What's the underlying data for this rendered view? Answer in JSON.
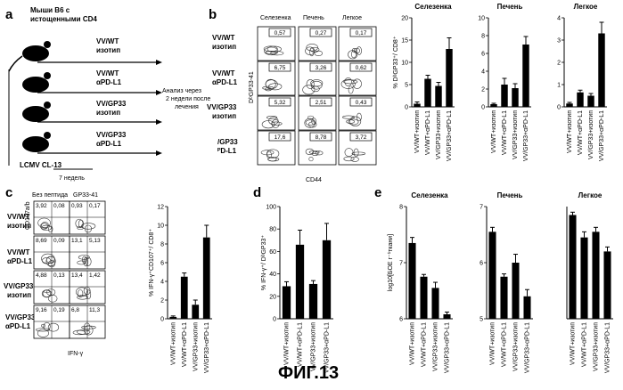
{
  "figure": {
    "caption": "ФИГ.13",
    "panel_letters": [
      "a",
      "b",
      "c",
      "d",
      "e"
    ]
  },
  "panel_a": {
    "mouse_label": [
      "Мыши B6 с",
      "истощенными CD4"
    ],
    "groups": [
      [
        "VV/WT",
        "изотип"
      ],
      [
        "VV/WT",
        "αPD-L1"
      ],
      [
        "VV/GP33",
        "изотип"
      ],
      [
        "VV/GP33",
        "αPD-L1"
      ]
    ],
    "analysis_note": [
      "Анализ через",
      "2 недели после",
      "лечения"
    ],
    "infection_label": "LCMV CL-13",
    "time_label": "7 недель"
  },
  "panel_b_flow": {
    "columns": [
      "Селезенка",
      "Печень",
      "Легкое"
    ],
    "row_labels": [
      [
        "VV/WT",
        "изотип"
      ],
      [
        "VV/WT",
        "αPD-L1"
      ],
      [
        "VV/GP33",
        "изотип"
      ],
      [
        "/GP33",
        "ᴾD-L1"
      ]
    ],
    "values": [
      [
        "0,57",
        "0,27",
        "0,17"
      ],
      [
        "6,75",
        "3,26",
        "0,62"
      ],
      [
        "5,32",
        "2,51",
        "0,43"
      ],
      [
        "17,6",
        "8,78",
        "3,72"
      ]
    ],
    "y_axis": "DᵇGP33-41",
    "x_axis": "CD44"
  },
  "panel_c_flow": {
    "col_headers": [
      "Без пептида",
      "GP33-41"
    ],
    "row_labels": [
      [
        "VV/WT",
        "изотип"
      ],
      [
        "VV/WT",
        "αPD-L1"
      ],
      [
        "VV/GP33",
        "изотип"
      ],
      [
        "VV/GP33",
        "αPD-L1"
      ]
    ],
    "quadrants": [
      [
        "3,92",
        "0,08",
        "0,93",
        "0,17"
      ],
      [
        "8,69",
        "0,09",
        "13,1",
        "5,13"
      ],
      [
        "4,88",
        "0,13",
        "13,4",
        "1,42"
      ],
      [
        "9,16",
        "0,19",
        "6,8",
        "11,3"
      ]
    ],
    "y_axis": "CD107a/b",
    "x_axis": "IFN-γ"
  },
  "chart_data": [
    {
      "id": "b1",
      "type": "bar",
      "title": "Селезенка",
      "ylabel": "% DᵇGP33⁺/ CD8⁺",
      "categories": [
        "VV/WT+изотип",
        "VV/WT+αPD-L1",
        "VV/GP33+изотип",
        "VV/GP33+αPD-L1"
      ],
      "values": [
        0.7,
        6.3,
        4.7,
        13.0
      ],
      "errors": [
        0.4,
        0.8,
        0.8,
        2.5
      ],
      "ylim": [
        0,
        20
      ],
      "yticks": [
        "0",
        "5",
        "10",
        "15",
        "20"
      ]
    },
    {
      "id": "b2",
      "type": "bar",
      "title": "Печень",
      "categories": [
        "VV/WT+изотип",
        "VV/WT+αPD-L1",
        "VV/GP33+изотип",
        "VV/GP33+αPD-L1"
      ],
      "values": [
        0.3,
        2.5,
        2.1,
        7.0
      ],
      "errors": [
        0.1,
        0.7,
        0.5,
        0.9
      ],
      "ylim": [
        0,
        10
      ],
      "yticks": [
        "0",
        "2",
        "4",
        "6",
        "8",
        "10"
      ]
    },
    {
      "id": "b3",
      "type": "bar",
      "title": "Легкое",
      "categories": [
        "VV/WT+изотип",
        "VV/WT+αPD-L1",
        "VV/GP33+изотип",
        "VV/GP33+αPD-L1"
      ],
      "values": [
        0.15,
        0.65,
        0.5,
        3.3
      ],
      "errors": [
        0.05,
        0.1,
        0.1,
        0.5
      ],
      "ylim": [
        0,
        4
      ],
      "yticks": [
        "0",
        "1",
        "2",
        "3",
        "4"
      ]
    },
    {
      "id": "c",
      "type": "bar",
      "ylabel": "% IFN-γ⁺CD107⁺/ CD8⁺",
      "categories": [
        "VV/WT+изотип",
        "VV/WT+αPD-L1",
        "VV/GP33+изотип",
        "VV/GP33+αPD-L1"
      ],
      "values": [
        0.2,
        4.5,
        1.5,
        8.7
      ],
      "errors": [
        0.1,
        0.4,
        0.5,
        1.3
      ],
      "ylim": [
        0,
        12
      ],
      "yticks": [
        "0",
        "2",
        "4",
        "6",
        "8",
        "10",
        "12"
      ]
    },
    {
      "id": "d",
      "type": "bar",
      "ylabel": "% IFN-γ⁺/ DᵇGP33⁺",
      "categories": [
        "VV/WT+изотип",
        "VV/WT+αPD-L1",
        "VV/GP33+изотип",
        "VV/GP33+αPD-L1"
      ],
      "values": [
        29,
        66,
        31,
        70
      ],
      "errors": [
        4,
        13,
        3,
        15
      ],
      "ylim": [
        0,
        100
      ],
      "yticks": [
        "0",
        "20",
        "40",
        "60",
        "80",
        "100"
      ]
    },
    {
      "id": "e1",
      "type": "bar",
      "title": "Селезенка",
      "ylabel": "log10[БОЕ г⁻¹ткани]",
      "categories": [
        "VV/WT+изотип",
        "VV/WT+αPD-L1",
        "VV/GP33+изотип",
        "VV/GP33+αPD-L1"
      ],
      "values": [
        7.35,
        6.75,
        6.55,
        6.08
      ],
      "errors": [
        0.1,
        0.04,
        0.1,
        0.04
      ],
      "ylim": [
        6,
        8
      ],
      "yticks": [
        "6",
        "7",
        "8"
      ]
    },
    {
      "id": "e2",
      "type": "bar",
      "title": "Печень",
      "categories": [
        "VV/WT+изотип",
        "VV/WT+αPD-L1",
        "VV/GP33+изотип",
        "VV/GP33+αPD-L1"
      ],
      "values": [
        6.55,
        5.75,
        6.0,
        5.4
      ],
      "errors": [
        0.08,
        0.05,
        0.15,
        0.12
      ],
      "ylim": [
        5,
        7
      ],
      "yticks": [
        "5",
        "6",
        "7"
      ]
    },
    {
      "id": "e3",
      "type": "bar",
      "title": "Легкое",
      "categories": [
        "VV/WT+изотип",
        "VV/WT+αPD-L1",
        "VV/GP33+изотип",
        "VV/GP33+αPD-L1"
      ],
      "values": [
        6.85,
        6.45,
        6.55,
        6.2
      ],
      "errors": [
        0.05,
        0.1,
        0.08,
        0.08
      ],
      "ylim": [
        5,
        7
      ],
      "yticks": []
    }
  ]
}
